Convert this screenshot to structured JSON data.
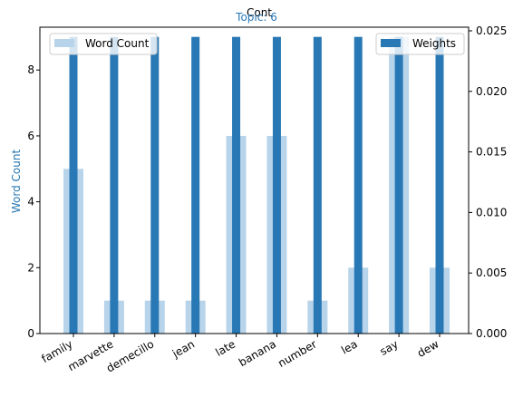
{
  "chart_data": {
    "type": "bar",
    "title": "Topic: 6",
    "suptitle": "Cont",
    "categories": [
      "family",
      "marvette",
      "demecillo",
      "jean",
      "late",
      "banana",
      "number",
      "lea",
      "say",
      "dew"
    ],
    "ylabel": "Word Count",
    "ylabel_right": "",
    "ylim": [
      0,
      9.3
    ],
    "ylim_right": [
      0,
      0.0253
    ],
    "yticks": [
      0,
      2,
      4,
      6,
      8
    ],
    "yticks_right": [
      0.0,
      0.005,
      0.01,
      0.015,
      0.02,
      0.025
    ],
    "yticks_right_labels": [
      "0.000",
      "0.005",
      "0.010",
      "0.015",
      "0.020",
      "0.025"
    ],
    "series": [
      {
        "name": "Word Count",
        "axis": "left",
        "color": "#b8d4ea",
        "values": [
          5,
          1,
          1,
          1,
          6,
          6,
          1,
          2,
          9,
          2
        ]
      },
      {
        "name": "Weights",
        "axis": "right",
        "color": "#2878b5",
        "values": [
          0.0245,
          0.0245,
          0.0245,
          0.0245,
          0.0245,
          0.0245,
          0.0245,
          0.0245,
          0.0245,
          0.0245
        ]
      }
    ],
    "legend": [
      {
        "label": "Word Count",
        "position": "top-left"
      },
      {
        "label": "Weights",
        "position": "top-right"
      }
    ],
    "colors": {
      "title": "#2878b5",
      "ylabel": "#2878b5"
    },
    "grid": false
  }
}
